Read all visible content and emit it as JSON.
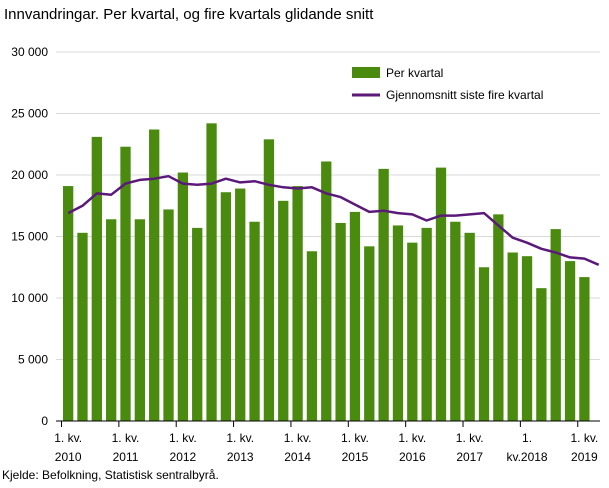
{
  "title": "Innvandringar. Per kvartal, og fire kvartals glidande snitt",
  "source": "Kjelde: Befolkning, Statistisk sentralbyrå.",
  "colors": {
    "bar": "#4a8a0e",
    "line": "#5b1a7a",
    "grid": "#d9d9d9",
    "axis": "#000000"
  },
  "chart_data": {
    "type": "bar",
    "title": "Innvandringar. Per kvartal, og fire kvartals glidande snitt",
    "xlabel": "",
    "ylabel": "",
    "ylim": [
      0,
      30000
    ],
    "yticks": [
      0,
      5000,
      10000,
      15000,
      20000,
      25000,
      30000
    ],
    "ytick_labels": [
      "0",
      "5 000",
      "10 000",
      "15 000",
      "20 000",
      "25 000",
      "30 000"
    ],
    "x_tick_labels": [
      [
        "1. kv.",
        "2010"
      ],
      [
        "1. kv.",
        "2011"
      ],
      [
        "1. kv.",
        "2012"
      ],
      [
        "1. kv.",
        "2013"
      ],
      [
        "1. kv.",
        "2014"
      ],
      [
        "1. kv.",
        "2015"
      ],
      [
        "1. kv.",
        "2016"
      ],
      [
        "1. kv.",
        "2017"
      ],
      [
        "1.",
        "kv.2018"
      ],
      [
        "1. kv.",
        "2019"
      ]
    ],
    "categories": [
      "2010K1",
      "2010K2",
      "2010K3",
      "2010K4",
      "2011K1",
      "2011K2",
      "2011K3",
      "2011K4",
      "2012K1",
      "2012K2",
      "2012K3",
      "2012K4",
      "2013K1",
      "2013K2",
      "2013K3",
      "2013K4",
      "2014K1",
      "2014K2",
      "2014K3",
      "2014K4",
      "2015K1",
      "2015K2",
      "2015K3",
      "2015K4",
      "2016K1",
      "2016K2",
      "2016K3",
      "2016K4",
      "2017K1",
      "2017K2",
      "2017K3",
      "2017K4",
      "2018K1",
      "2018K2",
      "2018K3",
      "2018K4",
      "2019K1",
      "2019K2",
      "2019K3"
    ],
    "legend_position": "top-right",
    "series": [
      {
        "name": "Per kvartal",
        "kind": "bar",
        "values": [
          19100,
          15300,
          23100,
          16400,
          22300,
          16400,
          23700,
          17200,
          20200,
          15700,
          24200,
          18600,
          18900,
          16200,
          22900,
          17900,
          19100,
          13800,
          21100,
          16100,
          17000,
          14200,
          20500,
          15900,
          14500,
          15700,
          20600,
          16200,
          15300,
          12500,
          16800,
          13700,
          13400,
          10800,
          15600,
          13000,
          11700,
          null,
          null
        ]
      },
      {
        "name": "Gjennomsnitt siste fire kvartal",
        "kind": "line",
        "values": [
          16900,
          17500,
          18500,
          18400,
          19300,
          19600,
          19700,
          19900,
          19300,
          19200,
          19300,
          19700,
          19400,
          19500,
          19200,
          19000,
          18900,
          19000,
          18500,
          18200,
          17600,
          17000,
          17100,
          16900,
          16800,
          16300,
          16700,
          16700,
          16800,
          16900,
          15900,
          14900,
          14500,
          14000,
          13700,
          13300,
          13200,
          12700,
          null
        ]
      }
    ]
  }
}
